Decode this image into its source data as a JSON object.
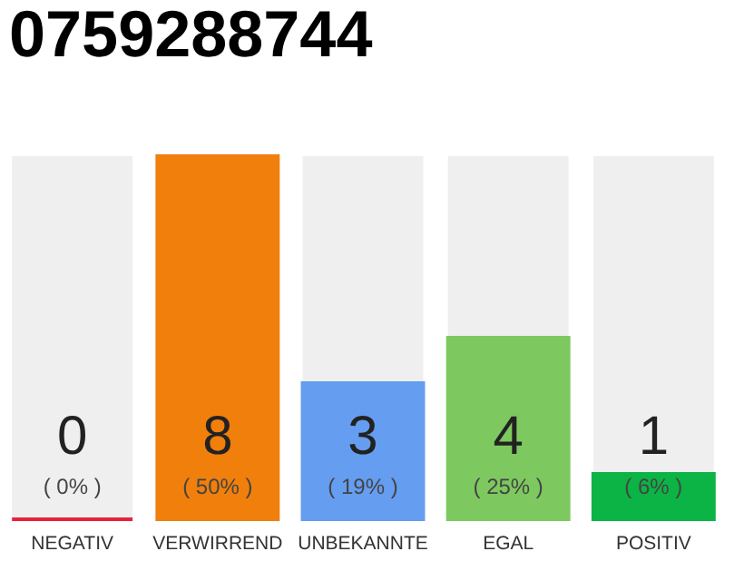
{
  "chart_data": {
    "type": "bar",
    "title": "0759288744",
    "categories": [
      "NEGATIV",
      "VERWIRREND",
      "UNBEKANNTE",
      "EGAL",
      "POSITIV"
    ],
    "values": [
      0,
      8,
      3,
      4,
      1
    ],
    "colors": [
      "#e8213c",
      "#f07f0c",
      "#659df0",
      "#7dc95f",
      "#0cb446"
    ],
    "ylim": [
      0,
      8
    ],
    "bands": [
      {
        "axis": "y",
        "from": 0,
        "to": 8,
        "color": "#efefef"
      }
    ],
    "data_labels": true,
    "annotations": [
      "( 0% )",
      "( 50% )",
      "( 19% )",
      "( 25% )",
      "( 6% )"
    ],
    "tick_labels": "x"
  }
}
